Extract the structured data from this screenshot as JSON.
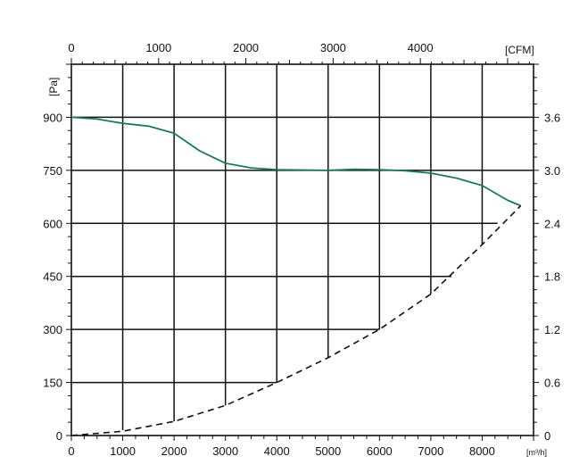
{
  "chart_data": {
    "type": "line",
    "x_axis_bottom": {
      "unit": "[m³/h]",
      "ticks": [
        "0",
        "1000",
        "2000",
        "3000",
        "4000",
        "5000",
        "6000",
        "7000",
        "8000"
      ],
      "range": [
        0,
        9000
      ]
    },
    "x_axis_top": {
      "unit": "[CFM]",
      "ticks": [
        "0",
        "1000",
        "2000",
        "3000",
        "4000"
      ],
      "values": [
        0,
        1000,
        2000,
        3000,
        4000
      ],
      "m3h_per_cfm": 1.699
    },
    "y_axis_left": {
      "unit": "[Pa]",
      "ticks": [
        "0",
        "150",
        "300",
        "450",
        "600",
        "750",
        "900"
      ],
      "range": [
        0,
        1050
      ]
    },
    "y_axis_right": {
      "ticks": [
        "0",
        "0.6",
        "1.2",
        "1.8",
        "2.4",
        "3.0",
        "3.6"
      ]
    },
    "grid_lines": {
      "horizontal": [
        {
          "y": 150,
          "x_end": 4000
        },
        {
          "y": 300,
          "x_end": 6000
        },
        {
          "y": 450,
          "x_end": 7400
        },
        {
          "y": 600,
          "x_end": 8300
        },
        {
          "y": 750,
          "x_end": 9000
        },
        {
          "y": 900,
          "x_end": 9000
        }
      ],
      "vertical": [
        {
          "x": 1000,
          "y_end": 15
        },
        {
          "x": 2000,
          "y_end": 40
        },
        {
          "x": 3000,
          "y_end": 85
        },
        {
          "x": 4000,
          "y_end": 150
        },
        {
          "x": 5000,
          "y_end": 220
        },
        {
          "x": 6000,
          "y_end": 300
        },
        {
          "x": 7000,
          "y_end": 400
        },
        {
          "x": 8000,
          "y_end": 540
        }
      ]
    },
    "series": [
      {
        "style": "solid",
        "color": "#1a7a55",
        "points": [
          [
            0,
            900
          ],
          [
            500,
            895
          ],
          [
            1000,
            883
          ],
          [
            1500,
            875
          ],
          [
            2000,
            855
          ],
          [
            2500,
            805
          ],
          [
            3000,
            770
          ],
          [
            3500,
            757
          ],
          [
            4000,
            752
          ],
          [
            5000,
            750
          ],
          [
            5500,
            753
          ],
          [
            6000,
            752
          ],
          [
            6500,
            749
          ],
          [
            7000,
            742
          ],
          [
            7500,
            728
          ],
          [
            8000,
            707
          ],
          [
            8500,
            665
          ],
          [
            8750,
            650
          ]
        ]
      },
      {
        "style": "dashed",
        "color": "#111111",
        "points": [
          [
            0,
            0
          ],
          [
            1000,
            12
          ],
          [
            2000,
            40
          ],
          [
            3000,
            85
          ],
          [
            4000,
            150
          ],
          [
            5000,
            220
          ],
          [
            6000,
            300
          ],
          [
            7000,
            400
          ],
          [
            8000,
            540
          ],
          [
            8750,
            650
          ]
        ]
      }
    ]
  }
}
